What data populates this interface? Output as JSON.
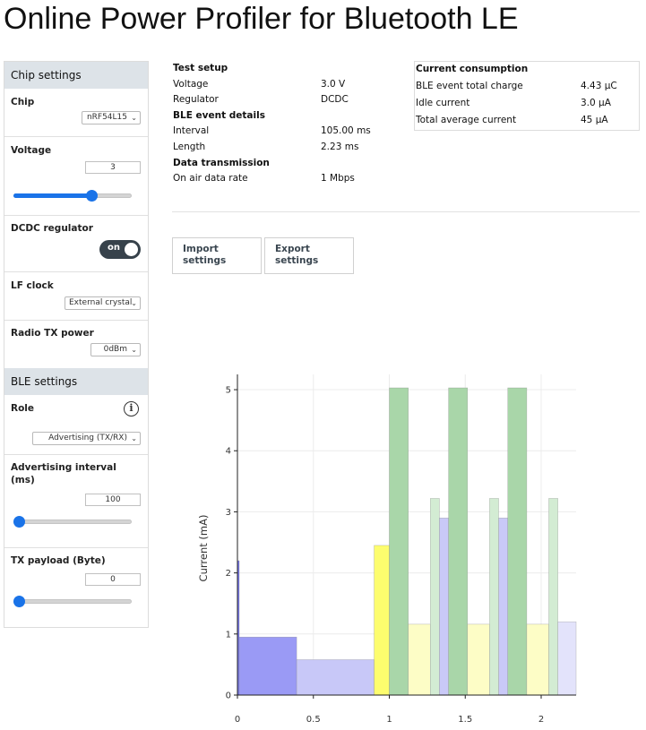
{
  "title": "Online Power Profiler for Bluetooth LE",
  "sidebar": {
    "chip_settings": {
      "header": "Chip settings",
      "chip": {
        "label": "Chip",
        "value": "nRF54L15"
      },
      "voltage": {
        "label": "Voltage",
        "value": "3",
        "slider_fraction": 0.66
      },
      "dcdc": {
        "label": "DCDC regulator",
        "toggle": "on"
      },
      "lf_clock": {
        "label": "LF clock",
        "value": "External crystal"
      },
      "tx_power": {
        "label": "Radio TX power",
        "value": "0dBm"
      }
    },
    "ble_settings": {
      "header": "BLE settings",
      "role": {
        "label": "Role",
        "value": "Advertising (TX/RX)"
      },
      "adv_interval": {
        "label_line1": "Advertising interval",
        "label_line2": "(ms)",
        "value": "100",
        "slider_fraction": 0.0
      },
      "tx_payload": {
        "label": "TX payload (Byte)",
        "value": "0",
        "slider_fraction": 0.0
      }
    }
  },
  "test_setup": {
    "header": "Test setup",
    "voltage": {
      "label": "Voltage",
      "value": "3.0 V"
    },
    "regulator": {
      "label": "Regulator",
      "value": "DCDC"
    },
    "ble_header": "BLE event details",
    "interval": {
      "label": "Interval",
      "value": "105.00 ms"
    },
    "length": {
      "label": "Length",
      "value": "2.23 ms"
    },
    "data_header": "Data transmission",
    "rate": {
      "label": "On air data rate",
      "value": "1 Mbps"
    }
  },
  "current_consumption": {
    "header": "Current consumption",
    "charge": {
      "label": "BLE event total charge",
      "value": "4.43 µC"
    },
    "idle": {
      "label": "Idle current",
      "value": "3.0 µA"
    },
    "average": {
      "label": "Total average current",
      "value": "45 µA"
    }
  },
  "buttons": {
    "import": {
      "line1": "Import",
      "line2": "settings"
    },
    "export": {
      "line1": "Export",
      "line2": "settings"
    }
  },
  "colors": {
    "accent": "#1a73e8",
    "header_bg": "#dde3e8",
    "toggle_bg": "#37424b"
  },
  "chart_data": {
    "type": "bar",
    "xlabel": "",
    "ylabel": "Current (mA)",
    "xlim": [
      0,
      2.23
    ],
    "ylim": [
      0,
      5.25
    ],
    "x_ticks": [
      0,
      0.5,
      1,
      1.5,
      2
    ],
    "x_tick_labels": [
      "0",
      "0.5",
      "1",
      "1.5",
      "2"
    ],
    "y_ticks": [
      0,
      1,
      2,
      3,
      4,
      5
    ],
    "y_tick_labels": [
      "0",
      "1",
      "2",
      "3",
      "4",
      "5"
    ],
    "segments": [
      {
        "x0": 0.0,
        "x1": 0.012,
        "y": 2.2,
        "color": "#7777ee"
      },
      {
        "x0": 0.012,
        "x1": 0.39,
        "y": 0.95,
        "color": "#9a9af5"
      },
      {
        "x0": 0.39,
        "x1": 0.9,
        "y": 0.58,
        "color": "#c8c8f8"
      },
      {
        "x0": 0.9,
        "x1": 1.0,
        "y": 2.45,
        "color": "#fdfd6e"
      },
      {
        "x0": 1.0,
        "x1": 1.125,
        "y": 5.03,
        "color": "#a9d6a9"
      },
      {
        "x0": 1.125,
        "x1": 1.27,
        "y": 1.16,
        "color": "#fdfdc6"
      },
      {
        "x0": 1.27,
        "x1": 1.33,
        "y": 3.22,
        "color": "#d3ecd3"
      },
      {
        "x0": 1.33,
        "x1": 1.39,
        "y": 2.9,
        "color": "#c9c9f7"
      },
      {
        "x0": 1.39,
        "x1": 1.515,
        "y": 5.03,
        "color": "#a9d6a9"
      },
      {
        "x0": 1.515,
        "x1": 1.66,
        "y": 1.16,
        "color": "#fdfdc6"
      },
      {
        "x0": 1.66,
        "x1": 1.72,
        "y": 3.22,
        "color": "#d3ecd3"
      },
      {
        "x0": 1.72,
        "x1": 1.78,
        "y": 2.9,
        "color": "#c9c9f7"
      },
      {
        "x0": 1.78,
        "x1": 1.905,
        "y": 5.03,
        "color": "#a9d6a9"
      },
      {
        "x0": 1.905,
        "x1": 2.05,
        "y": 1.16,
        "color": "#fdfdc6"
      },
      {
        "x0": 2.05,
        "x1": 2.11,
        "y": 3.22,
        "color": "#d3ecd3"
      },
      {
        "x0": 2.11,
        "x1": 2.23,
        "y": 1.2,
        "color": "#e3e3fb"
      }
    ]
  }
}
